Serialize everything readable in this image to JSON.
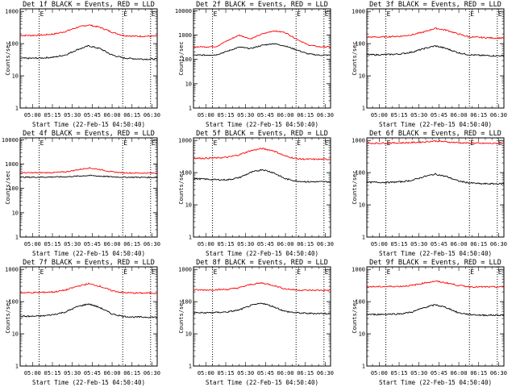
{
  "chart_data": [
    {
      "type": "line",
      "title": "Det 1f BLACK = Events, RED = LLD",
      "xlabel": "Start Time (22-Feb-15 04:50:40)",
      "ylabel": "Counts/sec",
      "x_ticks": [
        "05:00",
        "05:15",
        "05:30",
        "05:45",
        "06:00",
        "06:15",
        "06:30"
      ],
      "y_ticks": [
        "1",
        "10",
        "100",
        "1000"
      ],
      "yscale": "log",
      "ylim": [
        1,
        1200
      ],
      "grid": false,
      "marker_label": "E",
      "markers": [
        "05:05",
        "06:08",
        "06:29"
      ],
      "series": [
        {
          "color": "#ff0000",
          "values": [
            180,
            180,
            185,
            200,
            240,
            320,
            380,
            320,
            230,
            180,
            170,
            170,
            170
          ]
        },
        {
          "color": "#000000",
          "values": [
            35,
            35,
            36,
            38,
            45,
            65,
            85,
            70,
            45,
            36,
            34,
            33,
            33
          ]
        }
      ]
    },
    {
      "type": "line",
      "title": "Det 2f BLACK = Events, RED = LLD",
      "xlabel": "Start Time (22-Feb-15 04:50:40)",
      "ylabel": "Counts/sec",
      "x_ticks": [
        "05:00",
        "05:15",
        "05:30",
        "05:45",
        "06:00",
        "06:15",
        "06:30"
      ],
      "y_ticks": [
        "1",
        "10",
        "100",
        "1000",
        "10000"
      ],
      "yscale": "log",
      "ylim": [
        1,
        12000
      ],
      "grid": false,
      "marker_label": "E",
      "markers": [
        "05:05",
        "06:08",
        "06:29"
      ],
      "series": [
        {
          "color": "#ff0000",
          "values": [
            330,
            330,
            340,
            600,
            1000,
            700,
            1100,
            1500,
            1300,
            700,
            400,
            330,
            330
          ]
        },
        {
          "color": "#000000",
          "values": [
            150,
            150,
            155,
            220,
            320,
            280,
            380,
            450,
            360,
            250,
            170,
            150,
            150
          ]
        }
      ]
    },
    {
      "type": "line",
      "title": "Det 3f BLACK = Events, RED = LLD",
      "xlabel": "Start Time (22-Feb-15 04:50:40)",
      "ylabel": "Counts/sec",
      "x_ticks": [
        "05:00",
        "05:15",
        "05:30",
        "05:45",
        "06:00",
        "06:15",
        "06:30"
      ],
      "y_ticks": [
        "1",
        "10",
        "100",
        "1000"
      ],
      "yscale": "log",
      "ylim": [
        1,
        1200
      ],
      "grid": false,
      "marker_label": "E",
      "markers": [
        "05:05",
        "06:08",
        "06:29"
      ],
      "series": [
        {
          "color": "#ff0000",
          "values": [
            160,
            160,
            165,
            170,
            190,
            230,
            300,
            260,
            200,
            160,
            155,
            150,
            150
          ]
        },
        {
          "color": "#000000",
          "values": [
            45,
            45,
            46,
            48,
            55,
            70,
            85,
            70,
            52,
            45,
            43,
            42,
            42
          ]
        }
      ]
    },
    {
      "type": "line",
      "title": "Det 4f BLACK = Events, RED = LLD",
      "xlabel": "Start Time (22-Feb-15 04:50:40)",
      "ylabel": "Counts/sec",
      "x_ticks": [
        "05:00",
        "05:15",
        "05:30",
        "05:45",
        "06:00",
        "06:15",
        "06:30"
      ],
      "y_ticks": [
        "1",
        "10",
        "100",
        "1000",
        "10000"
      ],
      "yscale": "log",
      "ylim": [
        1,
        12000
      ],
      "grid": false,
      "marker_label": "E",
      "markers": [
        "05:05",
        "06:08",
        "06:29"
      ],
      "series": [
        {
          "color": "#ff0000",
          "values": [
            440,
            440,
            445,
            450,
            480,
            580,
            700,
            600,
            480,
            440,
            430,
            430,
            430
          ]
        },
        {
          "color": "#000000",
          "values": [
            290,
            290,
            292,
            295,
            300,
            320,
            340,
            320,
            300,
            290,
            288,
            285,
            285
          ]
        }
      ]
    },
    {
      "type": "line",
      "title": "Det 5f BLACK = Events, RED = LLD",
      "xlabel": "Start Time (22-Feb-15 04:50:40)",
      "ylabel": "Counts/sec",
      "x_ticks": [
        "05:00",
        "05:15",
        "05:30",
        "05:45",
        "06:00",
        "06:15",
        "06:30"
      ],
      "y_ticks": [
        "1",
        "10",
        "100",
        "1000"
      ],
      "yscale": "log",
      "ylim": [
        1,
        1200
      ],
      "grid": false,
      "marker_label": "E",
      "markers": [
        "05:05",
        "06:08",
        "06:29"
      ],
      "series": [
        {
          "color": "#ff0000",
          "values": [
            280,
            280,
            285,
            300,
            360,
            480,
            560,
            480,
            330,
            270,
            260,
            260,
            260
          ]
        },
        {
          "color": "#000000",
          "values": [
            65,
            63,
            60,
            60,
            70,
            100,
            125,
            100,
            65,
            55,
            52,
            52,
            52
          ]
        }
      ]
    },
    {
      "type": "line",
      "title": "Det 6f BLACK = Events, RED = LLD",
      "xlabel": "Start Time (22-Feb-15 04:50:40)",
      "ylabel": "Counts/sec",
      "x_ticks": [
        "05:00",
        "05:15",
        "05:30",
        "05:45",
        "06:00",
        "06:15",
        "06:30"
      ],
      "y_ticks": [
        "1",
        "10",
        "100",
        "1000"
      ],
      "yscale": "log",
      "ylim": [
        1,
        1200
      ],
      "grid": false,
      "marker_label": "E",
      "markers": [
        "05:05",
        "06:08",
        "06:29"
      ],
      "series": [
        {
          "color": "#ff0000",
          "values": [
            820,
            820,
            830,
            840,
            860,
            900,
            960,
            900,
            850,
            820,
            810,
            810,
            810
          ]
        },
        {
          "color": "#000000",
          "values": [
            50,
            50,
            50,
            52,
            58,
            75,
            90,
            75,
            55,
            48,
            45,
            45,
            45
          ]
        }
      ]
    },
    {
      "type": "line",
      "title": "Det 7f BLACK = Events, RED = LLD",
      "xlabel": "Start Time (22-Feb-15 04:50:40)",
      "ylabel": "Counts/sec",
      "x_ticks": [
        "05:00",
        "05:15",
        "05:30",
        "05:45",
        "06:00",
        "06:15",
        "06:30"
      ],
      "y_ticks": [
        "1",
        "10",
        "100",
        "1000"
      ],
      "yscale": "log",
      "ylim": [
        1,
        1200
      ],
      "grid": false,
      "marker_label": "E",
      "markers": [
        "05:05",
        "06:08",
        "06:29"
      ],
      "series": [
        {
          "color": "#ff0000",
          "values": [
            190,
            190,
            195,
            200,
            230,
            300,
            360,
            300,
            220,
            190,
            185,
            185,
            185
          ]
        },
        {
          "color": "#000000",
          "values": [
            35,
            35,
            36,
            40,
            48,
            70,
            85,
            65,
            42,
            35,
            33,
            33,
            33
          ]
        }
      ]
    },
    {
      "type": "line",
      "title": "Det 8f BLACK = Events, RED = LLD",
      "xlabel": "Start Time (22-Feb-15 04:50:40)",
      "ylabel": "Counts/sec",
      "x_ticks": [
        "05:00",
        "05:15",
        "05:30",
        "05:45",
        "06:00",
        "06:15",
        "06:30"
      ],
      "y_ticks": [
        "1",
        "10",
        "100",
        "1000"
      ],
      "yscale": "log",
      "ylim": [
        1,
        1200
      ],
      "grid": false,
      "marker_label": "E",
      "markers": [
        "05:05",
        "06:08",
        "06:29"
      ],
      "series": [
        {
          "color": "#ff0000",
          "values": [
            230,
            230,
            235,
            240,
            270,
            340,
            380,
            320,
            250,
            230,
            225,
            225,
            225
          ]
        },
        {
          "color": "#000000",
          "values": [
            45,
            45,
            46,
            48,
            55,
            75,
            90,
            70,
            50,
            45,
            43,
            43,
            43
          ]
        }
      ]
    },
    {
      "type": "line",
      "title": "Det 9f BLACK = Events, RED = LLD",
      "xlabel": "Start Time (22-Feb-15 04:50:40)",
      "ylabel": "Counts/sec",
      "x_ticks": [
        "05:00",
        "05:15",
        "05:30",
        "05:45",
        "06:00",
        "06:15",
        "06:30"
      ],
      "y_ticks": [
        "1",
        "10",
        "100",
        "1000"
      ],
      "yscale": "log",
      "ylim": [
        1,
        1200
      ],
      "grid": false,
      "marker_label": "E",
      "markers": [
        "05:05",
        "06:08",
        "06:29"
      ],
      "series": [
        {
          "color": "#ff0000",
          "values": [
            290,
            290,
            295,
            300,
            320,
            380,
            430,
            380,
            320,
            290,
            285,
            285,
            285
          ]
        },
        {
          "color": "#000000",
          "values": [
            40,
            40,
            41,
            42,
            48,
            65,
            80,
            65,
            45,
            40,
            38,
            38,
            38
          ]
        }
      ]
    }
  ]
}
